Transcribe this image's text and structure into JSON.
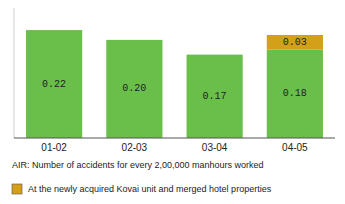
{
  "chart_data": {
    "type": "bar",
    "stacked": true,
    "categories": [
      "01-02",
      "02-03",
      "03-04",
      "04-05"
    ],
    "series": [
      {
        "color": "#6abf4b",
        "values": [
          0.22,
          0.2,
          0.17,
          0.18
        ],
        "value_labels": [
          "0.22",
          "0.20",
          "0.17",
          "0.18"
        ]
      },
      {
        "name": "At the newly acquired Kovai unit and merged hotel properties",
        "color": "#d4a017",
        "values": [
          0.0,
          0.0,
          0.0,
          0.03
        ],
        "value_labels": [
          null,
          null,
          null,
          "0.03"
        ]
      }
    ],
    "annotations": [
      "AIR: Number of accidents for every 2,00,000 manhours worked"
    ],
    "ylim": [
      0,
      0.265
    ],
    "data_labels": true,
    "tick_labels": "x",
    "legend": "bottom",
    "grid": false
  }
}
